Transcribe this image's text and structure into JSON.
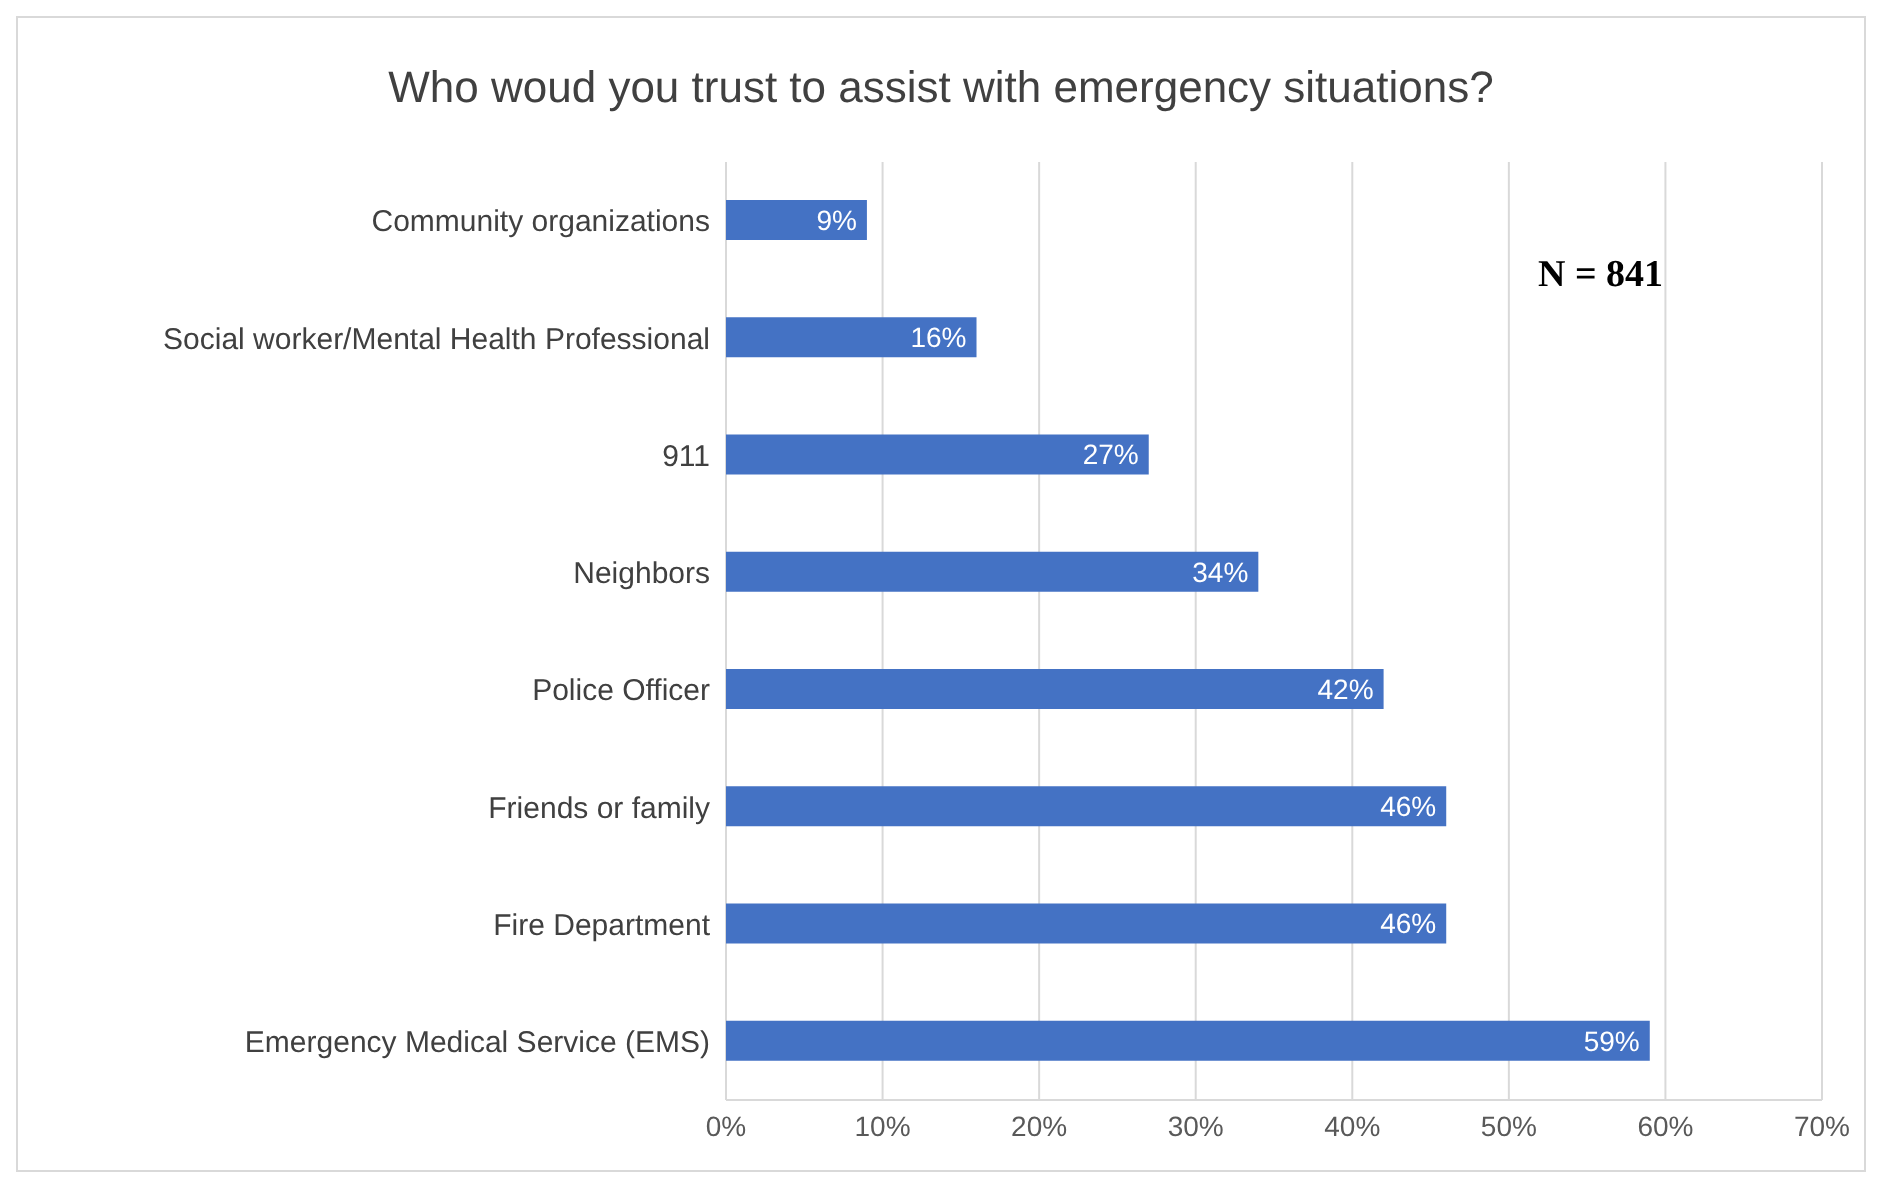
{
  "chart_data": {
    "type": "bar",
    "orientation": "horizontal",
    "title": "Who woud you trust to assist with emergency situations?",
    "categories": [
      "Community organizations",
      "Social worker/Mental Health Professional",
      "911",
      "Neighbors",
      "Police Officer",
      "Friends or family",
      "Fire Department",
      "Emergency Medical Service (EMS)"
    ],
    "values": [
      9,
      16,
      27,
      34,
      42,
      46,
      46,
      59
    ],
    "value_labels": [
      "9%",
      "16%",
      "27%",
      "34%",
      "42%",
      "46%",
      "46%",
      "59%"
    ],
    "color": "#4472c4",
    "xlim": [
      0,
      70
    ],
    "xticks": [
      {
        "value": 0,
        "label": "0%"
      },
      {
        "value": 10,
        "label": "10%"
      },
      {
        "value": 20,
        "label": "20%"
      },
      {
        "value": 30,
        "label": "30%"
      },
      {
        "value": 40,
        "label": "40%"
      },
      {
        "value": 50,
        "label": "50%"
      },
      {
        "value": 60,
        "label": "60%"
      },
      {
        "value": 70,
        "label": "70%"
      }
    ],
    "grid": "x",
    "annotations": [
      "N = 841"
    ]
  }
}
